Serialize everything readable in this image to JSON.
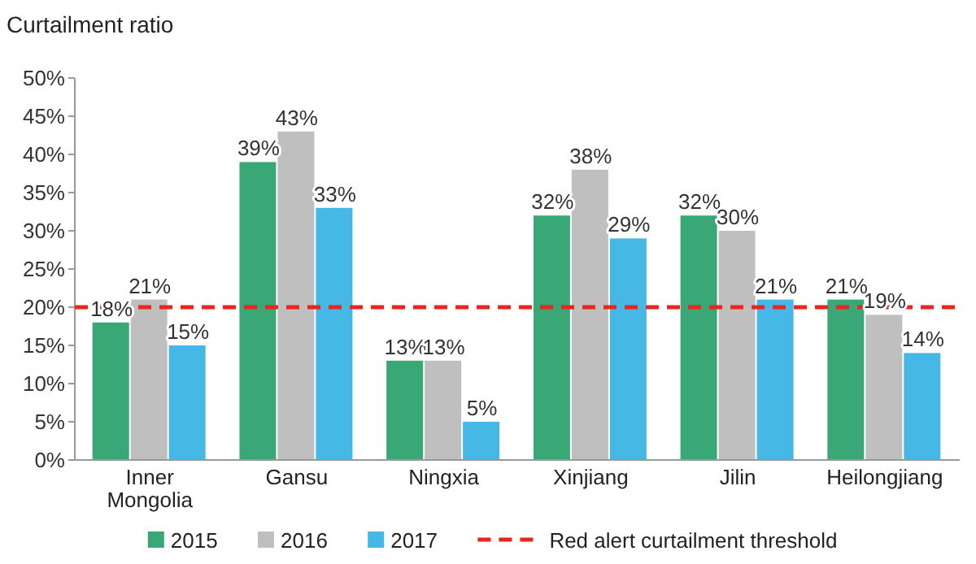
{
  "chart_data": {
    "type": "bar",
    "ylabel": "Curtailment ratio",
    "categories": [
      "Inner Mongolia",
      "Gansu",
      "Ningxia",
      "Xinjiang",
      "Jilin",
      "Heilongjiang"
    ],
    "series": [
      {
        "name": "2015",
        "color": "#3aa876",
        "values": [
          18,
          39,
          13,
          32,
          32,
          21
        ],
        "value_labels": [
          "18%",
          "39%",
          "13%",
          "32%",
          "32%",
          "21%"
        ]
      },
      {
        "name": "2016",
        "color": "#bfbfbf",
        "values": [
          21,
          43,
          13,
          38,
          30,
          19
        ],
        "value_labels": [
          "21%",
          "43%",
          "13%",
          "38%",
          "30%",
          "19%"
        ]
      },
      {
        "name": "2017",
        "color": "#45b8e6",
        "values": [
          15,
          33,
          5,
          29,
          21,
          14
        ],
        "value_labels": [
          "15%",
          "33%",
          "5%",
          "29%",
          "21%",
          "14%"
        ]
      }
    ],
    "ylim": [
      0,
      50
    ],
    "yticks": [
      {
        "value": 0,
        "label": "0%"
      },
      {
        "value": 5,
        "label": "5%"
      },
      {
        "value": 10,
        "label": "10%"
      },
      {
        "value": 15,
        "label": "15%"
      },
      {
        "value": 20,
        "label": "20%"
      },
      {
        "value": 25,
        "label": "25%"
      },
      {
        "value": 30,
        "label": "30%"
      },
      {
        "value": 35,
        "label": "35%"
      },
      {
        "value": 40,
        "label": "40%"
      },
      {
        "value": 45,
        "label": "45%"
      },
      {
        "value": 50,
        "label": "50%"
      }
    ],
    "ref_lines": [
      {
        "axis": "y",
        "value": 20,
        "label": "Red alert curtailment threshold",
        "color": "#e8251f",
        "line_style": "dashed"
      }
    ],
    "grid": false,
    "legend": "bottom"
  }
}
